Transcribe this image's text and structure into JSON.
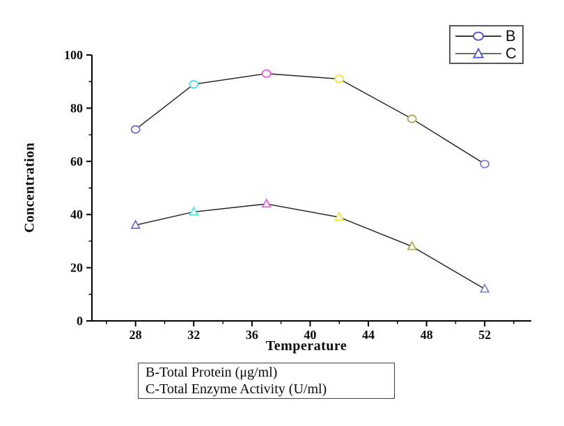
{
  "chart_data": {
    "type": "line",
    "x": [
      28,
      32,
      37,
      42,
      47,
      52
    ],
    "series": [
      {
        "name": "B",
        "marker": "circle",
        "values": [
          72,
          89,
          93,
          91,
          76,
          59
        ]
      },
      {
        "name": "C",
        "marker": "triangle",
        "values": [
          36,
          41,
          44,
          39,
          28,
          12
        ]
      }
    ],
    "point_colors": [
      "#6a6ad6",
      "#44e8e4",
      "#ee55dd",
      "#f5e438",
      "#a8a848",
      "#7c7cdd"
    ],
    "line_color": "#1c1c1c",
    "axis_color": "#000000",
    "xlabel": "Temperature",
    "ylabel": "Concentration",
    "xlim": [
      25,
      55.2
    ],
    "ylim": [
      0,
      100
    ],
    "x_ticks": [
      28,
      32,
      36,
      40,
      44,
      48,
      52
    ],
    "y_ticks": [
      0,
      20,
      40,
      60,
      80,
      100
    ],
    "x_minor_ticks": [
      26,
      30,
      34,
      38,
      42,
      46,
      50,
      54
    ],
    "y_minor_ticks": [
      10,
      30,
      50,
      70,
      90
    ],
    "grid": "off",
    "legend": {
      "position": "top-right",
      "entries": [
        "B",
        "C"
      ],
      "marker_color": "#4545cc",
      "line_color": "#3c3c3c"
    },
    "caption_lines": [
      "B-Total Protein (μg/ml)",
      "C-Total Enzyme Activity (U/ml)"
    ]
  }
}
